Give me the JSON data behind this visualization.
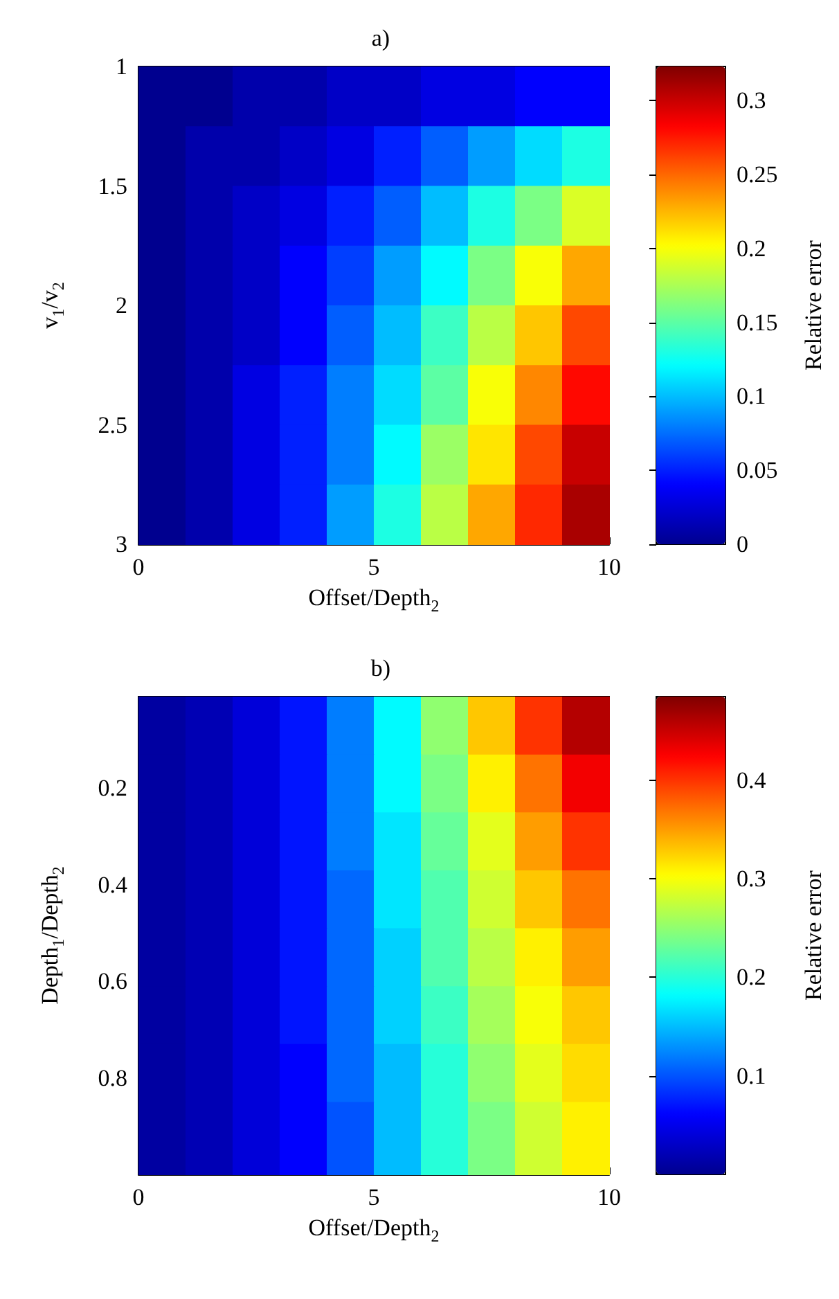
{
  "chart_data": [
    {
      "type": "heatmap",
      "title": "a)",
      "xlabel": "Offset/Depth$_{2}$",
      "ylabel": "v$_{1}$/v$_{2}$",
      "clabel": "Relative error",
      "x": [
        0.5,
        1.5,
        2.5,
        3.5,
        4.5,
        5.5,
        6.5,
        7.5,
        8.5,
        9.5
      ],
      "y": [
        1.125,
        1.375,
        1.625,
        1.875,
        2.125,
        2.375,
        2.625,
        2.875
      ],
      "xlim": [
        0,
        10
      ],
      "xticks": [
        0,
        5,
        10
      ],
      "ylim": [
        3,
        1
      ],
      "yticks": [
        1,
        1.5,
        2,
        2.5,
        3
      ],
      "clim": [
        0,
        0.323
      ],
      "cticks": [
        0,
        0.05,
        0.1,
        0.15,
        0.2,
        0.25,
        0.3
      ],
      "grid": false,
      "cells": [
        [
          0,
          0,
          0.01,
          0.01,
          0.02,
          0.02,
          0.03,
          0.03,
          0.04,
          0.04
        ],
        [
          0,
          0.01,
          0.01,
          0.02,
          0.03,
          0.05,
          0.07,
          0.09,
          0.11,
          0.13
        ],
        [
          0,
          0.01,
          0.02,
          0.03,
          0.05,
          0.07,
          0.1,
          0.13,
          0.16,
          0.19
        ],
        [
          0,
          0.01,
          0.02,
          0.04,
          0.06,
          0.09,
          0.12,
          0.16,
          0.2,
          0.23
        ],
        [
          0,
          0.01,
          0.02,
          0.04,
          0.07,
          0.1,
          0.14,
          0.18,
          0.22,
          0.26
        ],
        [
          0,
          0.01,
          0.03,
          0.05,
          0.08,
          0.11,
          0.15,
          0.2,
          0.24,
          0.28
        ],
        [
          0,
          0.01,
          0.03,
          0.05,
          0.08,
          0.12,
          0.17,
          0.21,
          0.26,
          0.3
        ],
        [
          0,
          0.01,
          0.03,
          0.05,
          0.09,
          0.13,
          0.18,
          0.23,
          0.27,
          0.31
        ]
      ]
    },
    {
      "type": "heatmap",
      "title": "b)",
      "xlabel": "Offset/Depth$_{2}$",
      "ylabel": "Depth$_{1}$/Depth$_{2}$",
      "clabel": "Relative error",
      "x": [
        0.5,
        1.5,
        2.5,
        3.5,
        4.5,
        5.5,
        6.5,
        7.5,
        8.5,
        9.5
      ],
      "y": [
        0.07,
        0.19,
        0.31,
        0.43,
        0.55,
        0.67,
        0.79,
        0.91
      ],
      "xlim": [
        0,
        10
      ],
      "xticks": [
        0,
        5,
        10
      ],
      "ylim": [
        1,
        0.01
      ],
      "yticks": [
        0.2,
        0.4,
        0.6,
        0.8
      ],
      "clim": [
        0,
        0.485
      ],
      "cticks": [
        0.1,
        0.2,
        0.3,
        0.4
      ],
      "grid": false,
      "cells": [
        [
          0.01,
          0.02,
          0.04,
          0.07,
          0.12,
          0.18,
          0.25,
          0.33,
          0.4,
          0.46
        ],
        [
          0.01,
          0.02,
          0.04,
          0.07,
          0.12,
          0.18,
          0.24,
          0.31,
          0.37,
          0.43
        ],
        [
          0.01,
          0.02,
          0.04,
          0.07,
          0.12,
          0.17,
          0.23,
          0.29,
          0.35,
          0.4
        ],
        [
          0.01,
          0.02,
          0.04,
          0.07,
          0.11,
          0.17,
          0.22,
          0.28,
          0.33,
          0.37
        ],
        [
          0.01,
          0.02,
          0.04,
          0.07,
          0.11,
          0.16,
          0.22,
          0.27,
          0.31,
          0.35
        ],
        [
          0.01,
          0.02,
          0.04,
          0.07,
          0.11,
          0.16,
          0.21,
          0.26,
          0.3,
          0.33
        ],
        [
          0.01,
          0.02,
          0.04,
          0.06,
          0.11,
          0.15,
          0.2,
          0.25,
          0.29,
          0.32
        ],
        [
          0.01,
          0.02,
          0.04,
          0.06,
          0.1,
          0.15,
          0.2,
          0.24,
          0.28,
          0.31
        ]
      ]
    }
  ]
}
